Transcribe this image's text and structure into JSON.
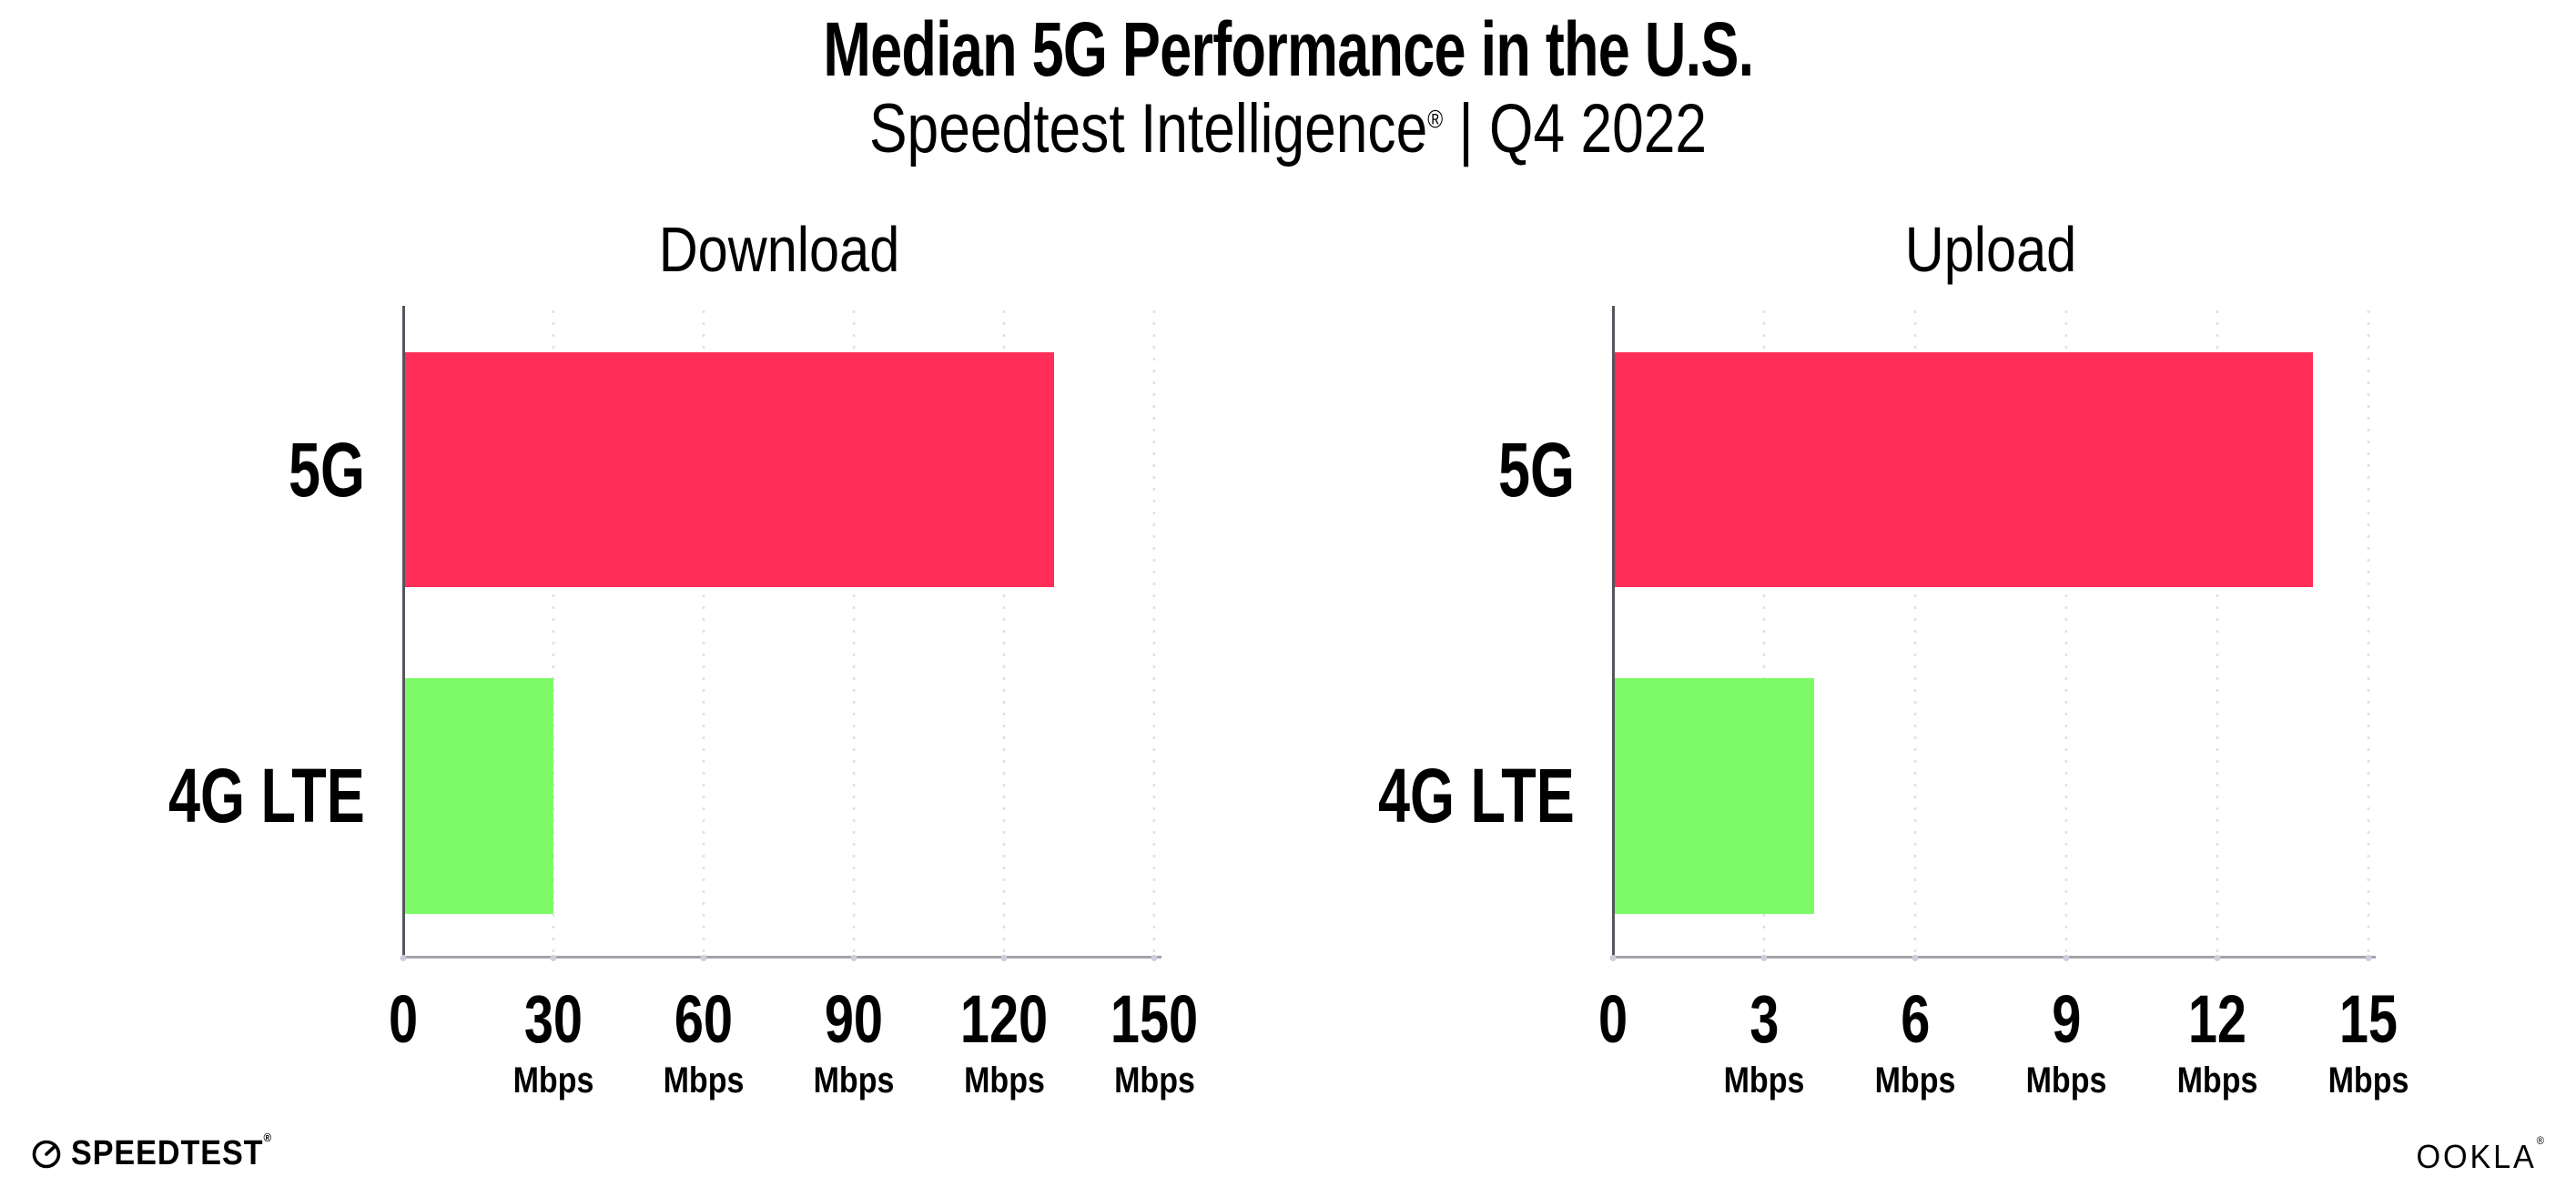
{
  "header": {
    "title": "Median 5G Performance in the U.S.",
    "subtitle_brand": "Speedtest Intelligence",
    "subtitle_reg": "®",
    "subtitle_period": "| Q4 2022"
  },
  "chart_data": [
    {
      "type": "bar",
      "orientation": "horizontal",
      "title": "Download",
      "categories": [
        "5G",
        "4G LTE"
      ],
      "values": [
        130,
        30
      ],
      "unit": "Mbps",
      "xlim": [
        0,
        150
      ],
      "xticks": [
        0,
        30,
        60,
        90,
        120,
        150
      ],
      "bar_colors": [
        "#ff2e58",
        "#7dfb66"
      ],
      "grid": "dotted-vertical-gridlines",
      "legend": "none"
    },
    {
      "type": "bar",
      "orientation": "horizontal",
      "title": "Upload",
      "categories": [
        "5G",
        "4G LTE"
      ],
      "values": [
        13.9,
        4
      ],
      "unit": "Mbps",
      "xlim": [
        0,
        15
      ],
      "xticks": [
        0,
        3,
        6,
        9,
        12,
        15
      ],
      "bar_colors": [
        "#ff2e58",
        "#7dfb66"
      ],
      "grid": "dotted-vertical-gridlines",
      "legend": "none"
    }
  ],
  "footer": {
    "speedtest_label": "SPEEDTEST",
    "speedtest_reg": "®",
    "ookla_label": "OOKLA",
    "ookla_reg": "®"
  },
  "colors": {
    "bar_5g": "#ff2e58",
    "bar_4g_lte": "#7dfb66",
    "gridline": "#e0e0ee",
    "y_axis": "#55555e",
    "x_axis": "#a3a3ab",
    "text": "#000000",
    "background": "#ffffff"
  }
}
